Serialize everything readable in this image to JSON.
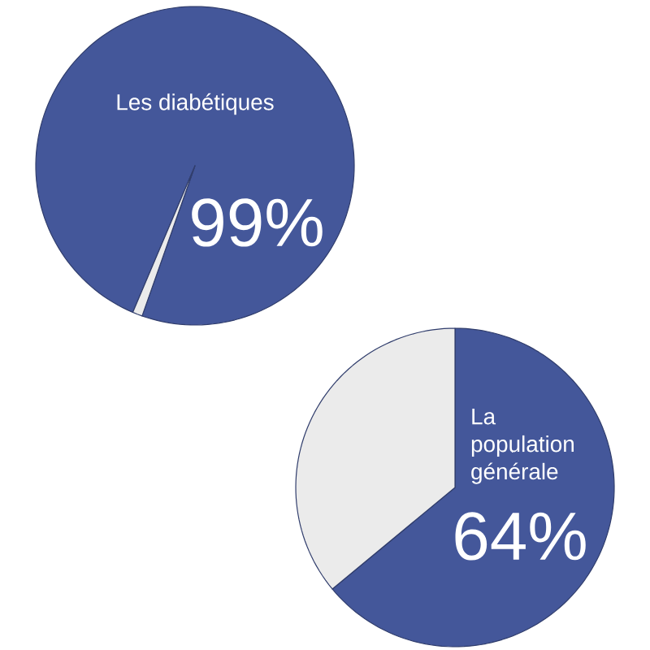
{
  "chart_data": [
    {
      "type": "pie",
      "categories": [
        "Les diabétiques",
        null
      ],
      "values": [
        99,
        1
      ],
      "colors": [
        "#44579a",
        "#ebebeb"
      ],
      "value_labels": [
        "99%",
        null
      ]
    },
    {
      "type": "pie",
      "categories": [
        "La population générale",
        null
      ],
      "values": [
        64,
        36
      ],
      "colors": [
        "#44579a",
        "#ebebeb"
      ],
      "value_labels": [
        "64%",
        null
      ]
    }
  ]
}
